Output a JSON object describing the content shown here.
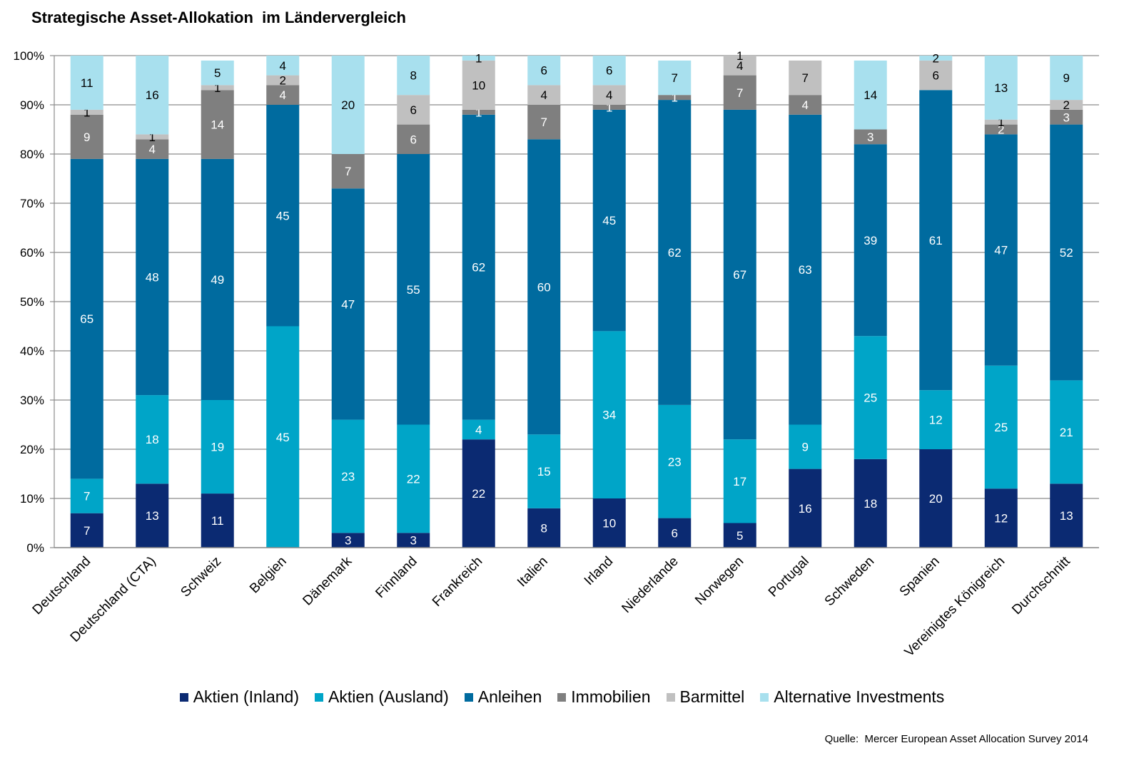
{
  "title": "Strategische Asset-Allokation  im Ländervergleich",
  "source": "Quelle:  Mercer European Asset Allocation Survey 2014",
  "chart_data": {
    "type": "bar",
    "stacked": true,
    "title": "Strategische Asset-Allokation  im Ländervergleich",
    "ylim": [
      0,
      100
    ],
    "yticks": [
      "0%",
      "10%",
      "20%",
      "30%",
      "40%",
      "50%",
      "60%",
      "70%",
      "80%",
      "90%",
      "100%"
    ],
    "grid": true,
    "legend_position": "bottom",
    "categories": [
      "Deutschland",
      "Deutschland (CTA)",
      "Schweiz",
      "Belgien",
      "Dänemark",
      "Finnland",
      "Frankreich",
      "Italien",
      "Irland",
      "Niederlande",
      "Norwegen",
      "Portugal",
      "Schweden",
      "Spanien",
      "Vereinigtes Königreich",
      "Durchschnitt"
    ],
    "series": [
      {
        "name": "Aktien (Inland)",
        "color": "#0b2a72",
        "label_color": "#ffffff",
        "values": [
          7,
          13,
          11,
          0,
          3,
          3,
          22,
          8,
          10,
          6,
          5,
          16,
          18,
          20,
          12,
          13
        ]
      },
      {
        "name": "Aktien (Ausland)",
        "color": "#00a5c8",
        "label_color": "#ffffff",
        "values": [
          7,
          18,
          19,
          45,
          23,
          22,
          4,
          15,
          34,
          23,
          17,
          9,
          25,
          12,
          25,
          21
        ]
      },
      {
        "name": "Anleihen",
        "color": "#006b9f",
        "label_color": "#ffffff",
        "values": [
          65,
          48,
          49,
          45,
          47,
          55,
          62,
          60,
          45,
          62,
          67,
          63,
          39,
          61,
          47,
          52
        ]
      },
      {
        "name": "Immobilien",
        "color": "#7f7f7f",
        "label_color": "#ffffff",
        "values": [
          9,
          4,
          14,
          4,
          7,
          6,
          1,
          7,
          1,
          1,
          7,
          4,
          3,
          0,
          2,
          3
        ]
      },
      {
        "name": "Barmittel",
        "color": "#c0c0c0",
        "label_color": "#000000",
        "values": [
          1,
          1,
          1,
          2,
          0,
          6,
          10,
          4,
          4,
          0,
          4,
          7,
          0,
          6,
          1,
          2
        ]
      },
      {
        "name": "Alternative Investments",
        "color": "#a8e0ee",
        "label_color": "#000000",
        "values": [
          11,
          16,
          5,
          4,
          20,
          8,
          1,
          6,
          6,
          7,
          1,
          0,
          14,
          2,
          13,
          9
        ]
      }
    ]
  }
}
